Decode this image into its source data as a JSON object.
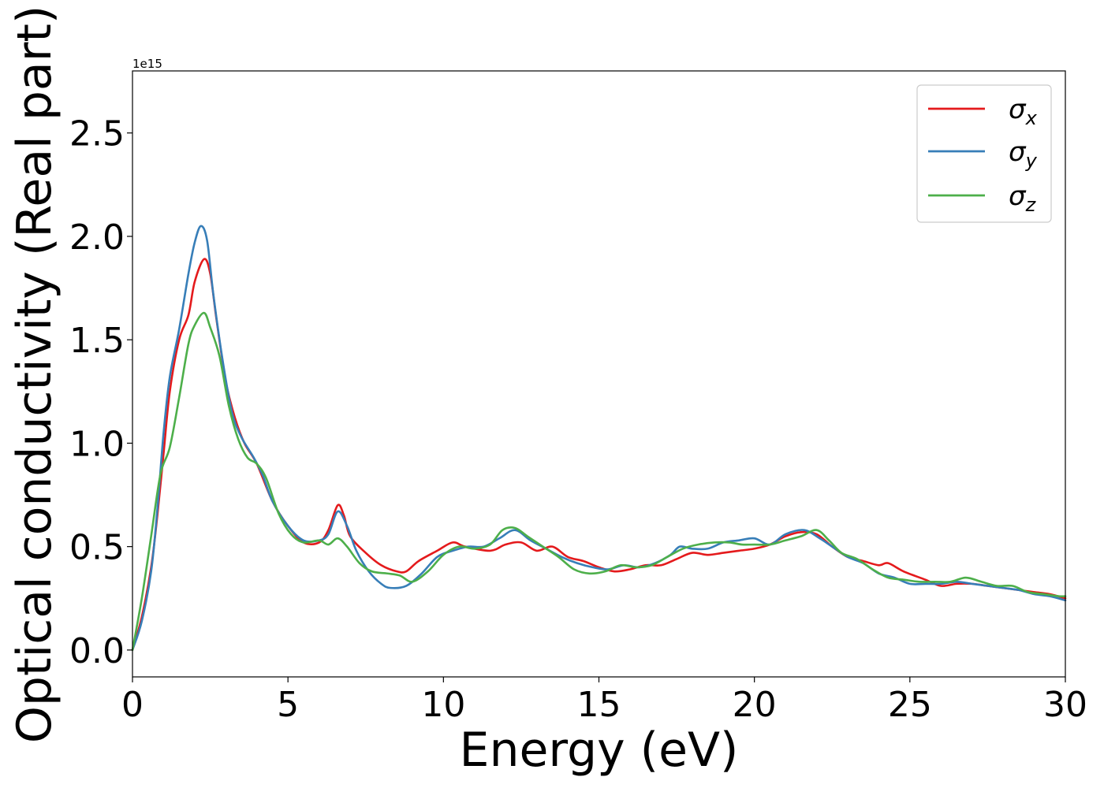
{
  "chart_data": {
    "type": "line",
    "title": "",
    "xlabel": "Energy (eV)",
    "ylabel": "Optical conductivity (Real part)",
    "y_offset_label": "1e15",
    "xlim": [
      0,
      30
    ],
    "ylim": [
      -0.13,
      2.8
    ],
    "xticks": [
      0,
      5,
      10,
      15,
      20,
      25,
      30
    ],
    "xtick_labels": [
      "0",
      "5",
      "10",
      "15",
      "20",
      "25",
      "30"
    ],
    "yticks": [
      0.0,
      0.5,
      1.0,
      1.5,
      2.0,
      2.5
    ],
    "ytick_labels": [
      "0.0",
      "0.5",
      "1.0",
      "1.5",
      "2.0",
      "2.5"
    ],
    "grid": false,
    "legend_position": "top-right",
    "legend": [
      {
        "symbol": "σ",
        "sub": "x",
        "color": "#e41a1c"
      },
      {
        "symbol": "σ",
        "sub": "y",
        "color": "#377eb8"
      },
      {
        "symbol": "σ",
        "sub": "z",
        "color": "#4daf4a"
      }
    ],
    "series": [
      {
        "color": "#e41a1c",
        "points": [
          [
            0,
            0.0
          ],
          [
            0.3,
            0.16
          ],
          [
            0.6,
            0.4
          ],
          [
            0.8,
            0.65
          ],
          [
            1.0,
            0.95
          ],
          [
            1.2,
            1.25
          ],
          [
            1.5,
            1.5
          ],
          [
            1.8,
            1.62
          ],
          [
            2.0,
            1.78
          ],
          [
            2.3,
            1.89
          ],
          [
            2.5,
            1.82
          ],
          [
            2.7,
            1.6
          ],
          [
            3.0,
            1.3
          ],
          [
            3.3,
            1.12
          ],
          [
            3.6,
            1.0
          ],
          [
            4.0,
            0.9
          ],
          [
            4.5,
            0.72
          ],
          [
            5.0,
            0.6
          ],
          [
            5.5,
            0.52
          ],
          [
            6.0,
            0.52
          ],
          [
            6.3,
            0.58
          ],
          [
            6.6,
            0.7
          ],
          [
            6.8,
            0.65
          ],
          [
            7.0,
            0.55
          ],
          [
            7.5,
            0.47
          ],
          [
            8.0,
            0.41
          ],
          [
            8.5,
            0.38
          ],
          [
            8.8,
            0.38
          ],
          [
            9.2,
            0.43
          ],
          [
            9.8,
            0.48
          ],
          [
            10.3,
            0.52
          ],
          [
            10.7,
            0.5
          ],
          [
            11.5,
            0.48
          ],
          [
            12.0,
            0.51
          ],
          [
            12.5,
            0.52
          ],
          [
            13.0,
            0.48
          ],
          [
            13.5,
            0.5
          ],
          [
            14.0,
            0.45
          ],
          [
            14.5,
            0.43
          ],
          [
            15.0,
            0.4
          ],
          [
            15.5,
            0.38
          ],
          [
            16.0,
            0.39
          ],
          [
            16.5,
            0.41
          ],
          [
            17.0,
            0.41
          ],
          [
            17.5,
            0.44
          ],
          [
            18.0,
            0.47
          ],
          [
            18.5,
            0.46
          ],
          [
            19.0,
            0.47
          ],
          [
            19.5,
            0.48
          ],
          [
            20.0,
            0.49
          ],
          [
            20.5,
            0.51
          ],
          [
            21.0,
            0.55
          ],
          [
            21.5,
            0.57
          ],
          [
            22.0,
            0.56
          ],
          [
            22.5,
            0.5
          ],
          [
            23.0,
            0.45
          ],
          [
            23.5,
            0.43
          ],
          [
            24.0,
            0.41
          ],
          [
            24.3,
            0.42
          ],
          [
            24.8,
            0.38
          ],
          [
            25.5,
            0.34
          ],
          [
            26.0,
            0.31
          ],
          [
            26.5,
            0.32
          ],
          [
            27.0,
            0.32
          ],
          [
            27.5,
            0.31
          ],
          [
            28.0,
            0.3
          ],
          [
            28.5,
            0.29
          ],
          [
            29.0,
            0.28
          ],
          [
            29.5,
            0.27
          ],
          [
            30.0,
            0.25
          ]
        ]
      },
      {
        "color": "#377eb8",
        "points": [
          [
            0,
            0.0
          ],
          [
            0.3,
            0.14
          ],
          [
            0.6,
            0.38
          ],
          [
            0.8,
            0.68
          ],
          [
            1.0,
            1.05
          ],
          [
            1.2,
            1.32
          ],
          [
            1.5,
            1.55
          ],
          [
            1.8,
            1.82
          ],
          [
            2.0,
            1.97
          ],
          [
            2.2,
            2.05
          ],
          [
            2.4,
            1.98
          ],
          [
            2.6,
            1.72
          ],
          [
            2.9,
            1.4
          ],
          [
            3.2,
            1.15
          ],
          [
            3.5,
            1.03
          ],
          [
            3.9,
            0.93
          ],
          [
            4.2,
            0.84
          ],
          [
            4.5,
            0.72
          ],
          [
            5.0,
            0.6
          ],
          [
            5.5,
            0.53
          ],
          [
            6.0,
            0.53
          ],
          [
            6.3,
            0.56
          ],
          [
            6.6,
            0.67
          ],
          [
            6.9,
            0.6
          ],
          [
            7.2,
            0.48
          ],
          [
            7.6,
            0.38
          ],
          [
            8.0,
            0.32
          ],
          [
            8.3,
            0.3
          ],
          [
            8.8,
            0.31
          ],
          [
            9.3,
            0.37
          ],
          [
            9.8,
            0.45
          ],
          [
            10.3,
            0.48
          ],
          [
            10.8,
            0.5
          ],
          [
            11.3,
            0.5
          ],
          [
            11.8,
            0.54
          ],
          [
            12.3,
            0.58
          ],
          [
            12.8,
            0.53
          ],
          [
            13.3,
            0.49
          ],
          [
            13.8,
            0.45
          ],
          [
            14.3,
            0.42
          ],
          [
            14.8,
            0.4
          ],
          [
            15.3,
            0.39
          ],
          [
            15.8,
            0.41
          ],
          [
            16.3,
            0.4
          ],
          [
            16.8,
            0.42
          ],
          [
            17.3,
            0.46
          ],
          [
            17.6,
            0.5
          ],
          [
            18.0,
            0.49
          ],
          [
            18.5,
            0.49
          ],
          [
            19.0,
            0.52
          ],
          [
            19.5,
            0.53
          ],
          [
            20.0,
            0.54
          ],
          [
            20.5,
            0.51
          ],
          [
            21.0,
            0.56
          ],
          [
            21.6,
            0.58
          ],
          [
            22.1,
            0.54
          ],
          [
            22.5,
            0.5
          ],
          [
            23.0,
            0.45
          ],
          [
            23.5,
            0.42
          ],
          [
            24.0,
            0.37
          ],
          [
            24.5,
            0.35
          ],
          [
            25.0,
            0.32
          ],
          [
            25.5,
            0.32
          ],
          [
            26.0,
            0.32
          ],
          [
            26.5,
            0.33
          ],
          [
            27.0,
            0.32
          ],
          [
            27.5,
            0.31
          ],
          [
            28.0,
            0.3
          ],
          [
            28.5,
            0.29
          ],
          [
            29.0,
            0.27
          ],
          [
            29.5,
            0.26
          ],
          [
            30.0,
            0.24
          ]
        ]
      },
      {
        "color": "#4daf4a",
        "points": [
          [
            0,
            0.0
          ],
          [
            0.3,
            0.25
          ],
          [
            0.6,
            0.55
          ],
          [
            0.9,
            0.85
          ],
          [
            1.2,
            0.98
          ],
          [
            1.5,
            1.22
          ],
          [
            1.8,
            1.48
          ],
          [
            2.0,
            1.57
          ],
          [
            2.3,
            1.63
          ],
          [
            2.5,
            1.56
          ],
          [
            2.8,
            1.42
          ],
          [
            3.1,
            1.18
          ],
          [
            3.4,
            1.02
          ],
          [
            3.7,
            0.93
          ],
          [
            4.0,
            0.9
          ],
          [
            4.3,
            0.83
          ],
          [
            4.7,
            0.66
          ],
          [
            5.1,
            0.56
          ],
          [
            5.5,
            0.52
          ],
          [
            6.0,
            0.53
          ],
          [
            6.3,
            0.51
          ],
          [
            6.6,
            0.54
          ],
          [
            6.9,
            0.5
          ],
          [
            7.3,
            0.42
          ],
          [
            7.7,
            0.38
          ],
          [
            8.2,
            0.37
          ],
          [
            8.6,
            0.36
          ],
          [
            9.0,
            0.33
          ],
          [
            9.5,
            0.38
          ],
          [
            10.0,
            0.46
          ],
          [
            10.5,
            0.5
          ],
          [
            11.0,
            0.49
          ],
          [
            11.5,
            0.51
          ],
          [
            11.9,
            0.58
          ],
          [
            12.3,
            0.59
          ],
          [
            12.7,
            0.55
          ],
          [
            13.2,
            0.5
          ],
          [
            13.7,
            0.45
          ],
          [
            14.2,
            0.39
          ],
          [
            14.7,
            0.37
          ],
          [
            15.2,
            0.38
          ],
          [
            15.7,
            0.41
          ],
          [
            16.2,
            0.4
          ],
          [
            16.7,
            0.41
          ],
          [
            17.2,
            0.45
          ],
          [
            17.7,
            0.49
          ],
          [
            18.2,
            0.51
          ],
          [
            18.7,
            0.52
          ],
          [
            19.2,
            0.52
          ],
          [
            19.6,
            0.51
          ],
          [
            20.0,
            0.51
          ],
          [
            20.5,
            0.51
          ],
          [
            21.0,
            0.53
          ],
          [
            21.5,
            0.55
          ],
          [
            22.0,
            0.58
          ],
          [
            22.4,
            0.53
          ],
          [
            22.8,
            0.47
          ],
          [
            23.3,
            0.44
          ],
          [
            23.8,
            0.39
          ],
          [
            24.3,
            0.35
          ],
          [
            24.8,
            0.34
          ],
          [
            25.3,
            0.33
          ],
          [
            25.8,
            0.33
          ],
          [
            26.3,
            0.33
          ],
          [
            26.8,
            0.35
          ],
          [
            27.3,
            0.33
          ],
          [
            27.8,
            0.31
          ],
          [
            28.3,
            0.31
          ],
          [
            28.8,
            0.28
          ],
          [
            29.3,
            0.27
          ],
          [
            29.8,
            0.26
          ],
          [
            30.0,
            0.26
          ]
        ]
      }
    ]
  }
}
